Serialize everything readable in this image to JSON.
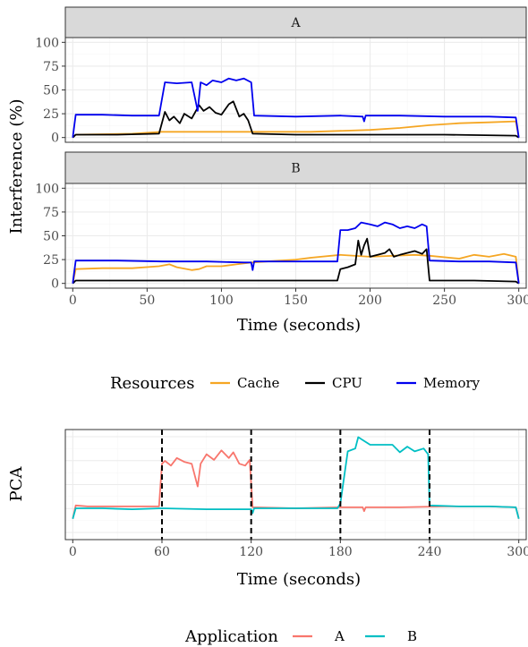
{
  "colors": {
    "cache": "#F5A623",
    "cpu": "#000000",
    "memory": "#0000EE",
    "app_a": "#F8766D",
    "app_b": "#00BFC4",
    "strip_bg": "#D9D9D9",
    "grid_major": "#EBEBEB",
    "grid_minor": "#F5F5F5"
  },
  "chart_data": [
    {
      "type": "line",
      "facets": [
        "A",
        "B"
      ],
      "ylabel": "Interference (%)",
      "xlabel": "Time (seconds)",
      "xlim": [
        -5,
        305
      ],
      "ylim": [
        0,
        100
      ],
      "x_ticks": [
        0,
        50,
        100,
        150,
        200,
        250,
        300
      ],
      "y_ticks": [
        0,
        25,
        50,
        75,
        100
      ],
      "legend": {
        "title": "Resources",
        "position": "bottom",
        "entries": [
          "Cache",
          "CPU",
          "Memory"
        ]
      },
      "panels": [
        {
          "facet": "A",
          "series": [
            {
              "name": "Cache",
              "points": [
                [
                  0,
                  0
                ],
                [
                  2,
                  3
                ],
                [
                  40,
                  4
                ],
                [
                  60,
                  6
                ],
                [
                  120,
                  6
                ],
                [
                  160,
                  6
                ],
                [
                  200,
                  8
                ],
                [
                  220,
                  10
                ],
                [
                  240,
                  13
                ],
                [
                  260,
                  15
                ],
                [
                  280,
                  16
                ],
                [
                  298,
                  17
                ],
                [
                  300,
                  0
                ]
              ]
            },
            {
              "name": "CPU",
              "points": [
                [
                  0,
                  0
                ],
                [
                  2,
                  3
                ],
                [
                  30,
                  3
                ],
                [
                  58,
                  4
                ],
                [
                  62,
                  27
                ],
                [
                  65,
                  18
                ],
                [
                  68,
                  22
                ],
                [
                  72,
                  15
                ],
                [
                  75,
                  25
                ],
                [
                  80,
                  20
                ],
                [
                  85,
                  34
                ],
                [
                  88,
                  28
                ],
                [
                  92,
                  32
                ],
                [
                  96,
                  26
                ],
                [
                  100,
                  24
                ],
                [
                  105,
                  35
                ],
                [
                  108,
                  38
                ],
                [
                  112,
                  22
                ],
                [
                  115,
                  25
                ],
                [
                  118,
                  18
                ],
                [
                  121,
                  4
                ],
                [
                  150,
                  3
                ],
                [
                  200,
                  3
                ],
                [
                  250,
                  3
                ],
                [
                  298,
                  2
                ],
                [
                  300,
                  0
                ]
              ]
            },
            {
              "name": "Memory",
              "points": [
                [
                  0,
                  0
                ],
                [
                  2,
                  24
                ],
                [
                  20,
                  24
                ],
                [
                  40,
                  23
                ],
                [
                  58,
                  23
                ],
                [
                  62,
                  58
                ],
                [
                  70,
                  57
                ],
                [
                  80,
                  58
                ],
                [
                  84,
                  28
                ],
                [
                  86,
                  58
                ],
                [
                  90,
                  55
                ],
                [
                  94,
                  60
                ],
                [
                  100,
                  58
                ],
                [
                  105,
                  62
                ],
                [
                  110,
                  60
                ],
                [
                  115,
                  62
                ],
                [
                  120,
                  58
                ],
                [
                  122,
                  23
                ],
                [
                  150,
                  22
                ],
                [
                  180,
                  23
                ],
                [
                  195,
                  22
                ],
                [
                  196,
                  17
                ],
                [
                  197,
                  23
                ],
                [
                  220,
                  23
                ],
                [
                  250,
                  22
                ],
                [
                  280,
                  22
                ],
                [
                  298,
                  21
                ],
                [
                  300,
                  0
                ]
              ]
            }
          ]
        },
        {
          "facet": "B",
          "series": [
            {
              "name": "Cache",
              "points": [
                [
                  0,
                  0
                ],
                [
                  2,
                  15
                ],
                [
                  20,
                  16
                ],
                [
                  40,
                  16
                ],
                [
                  58,
                  18
                ],
                [
                  65,
                  20
                ],
                [
                  70,
                  17
                ],
                [
                  80,
                  14
                ],
                [
                  85,
                  15
                ],
                [
                  90,
                  18
                ],
                [
                  100,
                  18
                ],
                [
                  110,
                  20
                ],
                [
                  120,
                  22
                ],
                [
                  150,
                  25
                ],
                [
                  160,
                  27
                ],
                [
                  180,
                  30
                ],
                [
                  200,
                  28
                ],
                [
                  230,
                  30
                ],
                [
                  240,
                  29
                ],
                [
                  260,
                  26
                ],
                [
                  270,
                  30
                ],
                [
                  280,
                  28
                ],
                [
                  290,
                  31
                ],
                [
                  298,
                  28
                ],
                [
                  300,
                  0
                ]
              ]
            },
            {
              "name": "CPU",
              "points": [
                [
                  0,
                  0
                ],
                [
                  2,
                  3
                ],
                [
                  50,
                  3
                ],
                [
                  100,
                  3
                ],
                [
                  150,
                  3
                ],
                [
                  178,
                  3
                ],
                [
                  180,
                  15
                ],
                [
                  185,
                  17
                ],
                [
                  190,
                  20
                ],
                [
                  192,
                  45
                ],
                [
                  194,
                  30
                ],
                [
                  196,
                  40
                ],
                [
                  198,
                  47
                ],
                [
                  200,
                  28
                ],
                [
                  205,
                  30
                ],
                [
                  210,
                  32
                ],
                [
                  213,
                  36
                ],
                [
                  216,
                  28
                ],
                [
                  220,
                  30
                ],
                [
                  225,
                  32
                ],
                [
                  230,
                  34
                ],
                [
                  235,
                  31
                ],
                [
                  238,
                  36
                ],
                [
                  240,
                  3
                ],
                [
                  270,
                  3
                ],
                [
                  298,
                  2
                ],
                [
                  300,
                  0
                ]
              ]
            },
            {
              "name": "Memory",
              "points": [
                [
                  0,
                  0
                ],
                [
                  2,
                  24
                ],
                [
                  30,
                  24
                ],
                [
                  60,
                  23
                ],
                [
                  90,
                  23
                ],
                [
                  115,
                  22
                ],
                [
                  120,
                  22
                ],
                [
                  121,
                  14
                ],
                [
                  122,
                  23
                ],
                [
                  150,
                  23
                ],
                [
                  178,
                  23
                ],
                [
                  180,
                  56
                ],
                [
                  185,
                  56
                ],
                [
                  190,
                  58
                ],
                [
                  194,
                  64
                ],
                [
                  200,
                  62
                ],
                [
                  205,
                  60
                ],
                [
                  210,
                  64
                ],
                [
                  215,
                  62
                ],
                [
                  220,
                  58
                ],
                [
                  225,
                  60
                ],
                [
                  230,
                  58
                ],
                [
                  235,
                  62
                ],
                [
                  238,
                  60
                ],
                [
                  240,
                  24
                ],
                [
                  260,
                  23
                ],
                [
                  280,
                  23
                ],
                [
                  298,
                  22
                ],
                [
                  300,
                  0
                ]
              ]
            }
          ]
        }
      ]
    },
    {
      "type": "line",
      "ylabel": "PCA",
      "xlabel": "Time (seconds)",
      "xlim": [
        -5,
        305
      ],
      "ylim": [
        0,
        1
      ],
      "x_ticks": [
        0,
        60,
        120,
        180,
        240,
        300
      ],
      "vlines": [
        60,
        120,
        180,
        240
      ],
      "legend": {
        "title": "Application",
        "position": "bottom",
        "entries": [
          "A",
          "B"
        ]
      },
      "series": [
        {
          "name": "A",
          "points": [
            [
              0,
              0.14
            ],
            [
              2,
              0.28
            ],
            [
              10,
              0.27
            ],
            [
              30,
              0.27
            ],
            [
              58,
              0.27
            ],
            [
              60,
              0.72
            ],
            [
              62,
              0.75
            ],
            [
              66,
              0.7
            ],
            [
              70,
              0.78
            ],
            [
              75,
              0.74
            ],
            [
              80,
              0.72
            ],
            [
              84,
              0.48
            ],
            [
              86,
              0.72
            ],
            [
              90,
              0.82
            ],
            [
              95,
              0.76
            ],
            [
              100,
              0.86
            ],
            [
              105,
              0.78
            ],
            [
              108,
              0.84
            ],
            [
              112,
              0.72
            ],
            [
              116,
              0.7
            ],
            [
              119,
              0.76
            ],
            [
              121,
              0.26
            ],
            [
              150,
              0.25
            ],
            [
              180,
              0.26
            ],
            [
              195,
              0.26
            ],
            [
              196,
              0.22
            ],
            [
              197,
              0.26
            ],
            [
              220,
              0.26
            ],
            [
              250,
              0.27
            ],
            [
              280,
              0.27
            ],
            [
              298,
              0.26
            ],
            [
              300,
              0.14
            ]
          ]
        },
        {
          "name": "B",
          "points": [
            [
              0,
              0.14
            ],
            [
              2,
              0.25
            ],
            [
              20,
              0.25
            ],
            [
              40,
              0.24
            ],
            [
              60,
              0.25
            ],
            [
              90,
              0.24
            ],
            [
              110,
              0.24
            ],
            [
              120,
              0.24
            ],
            [
              121,
              0.2
            ],
            [
              122,
              0.25
            ],
            [
              150,
              0.25
            ],
            [
              178,
              0.25
            ],
            [
              180,
              0.3
            ],
            [
              185,
              0.85
            ],
            [
              190,
              0.88
            ],
            [
              192,
              1.0
            ],
            [
              196,
              0.96
            ],
            [
              200,
              0.92
            ],
            [
              210,
              0.92
            ],
            [
              215,
              0.92
            ],
            [
              220,
              0.84
            ],
            [
              225,
              0.9
            ],
            [
              230,
              0.85
            ],
            [
              236,
              0.88
            ],
            [
              239,
              0.82
            ],
            [
              240,
              0.28
            ],
            [
              260,
              0.27
            ],
            [
              280,
              0.27
            ],
            [
              298,
              0.26
            ],
            [
              300,
              0.14
            ]
          ]
        }
      ]
    }
  ]
}
